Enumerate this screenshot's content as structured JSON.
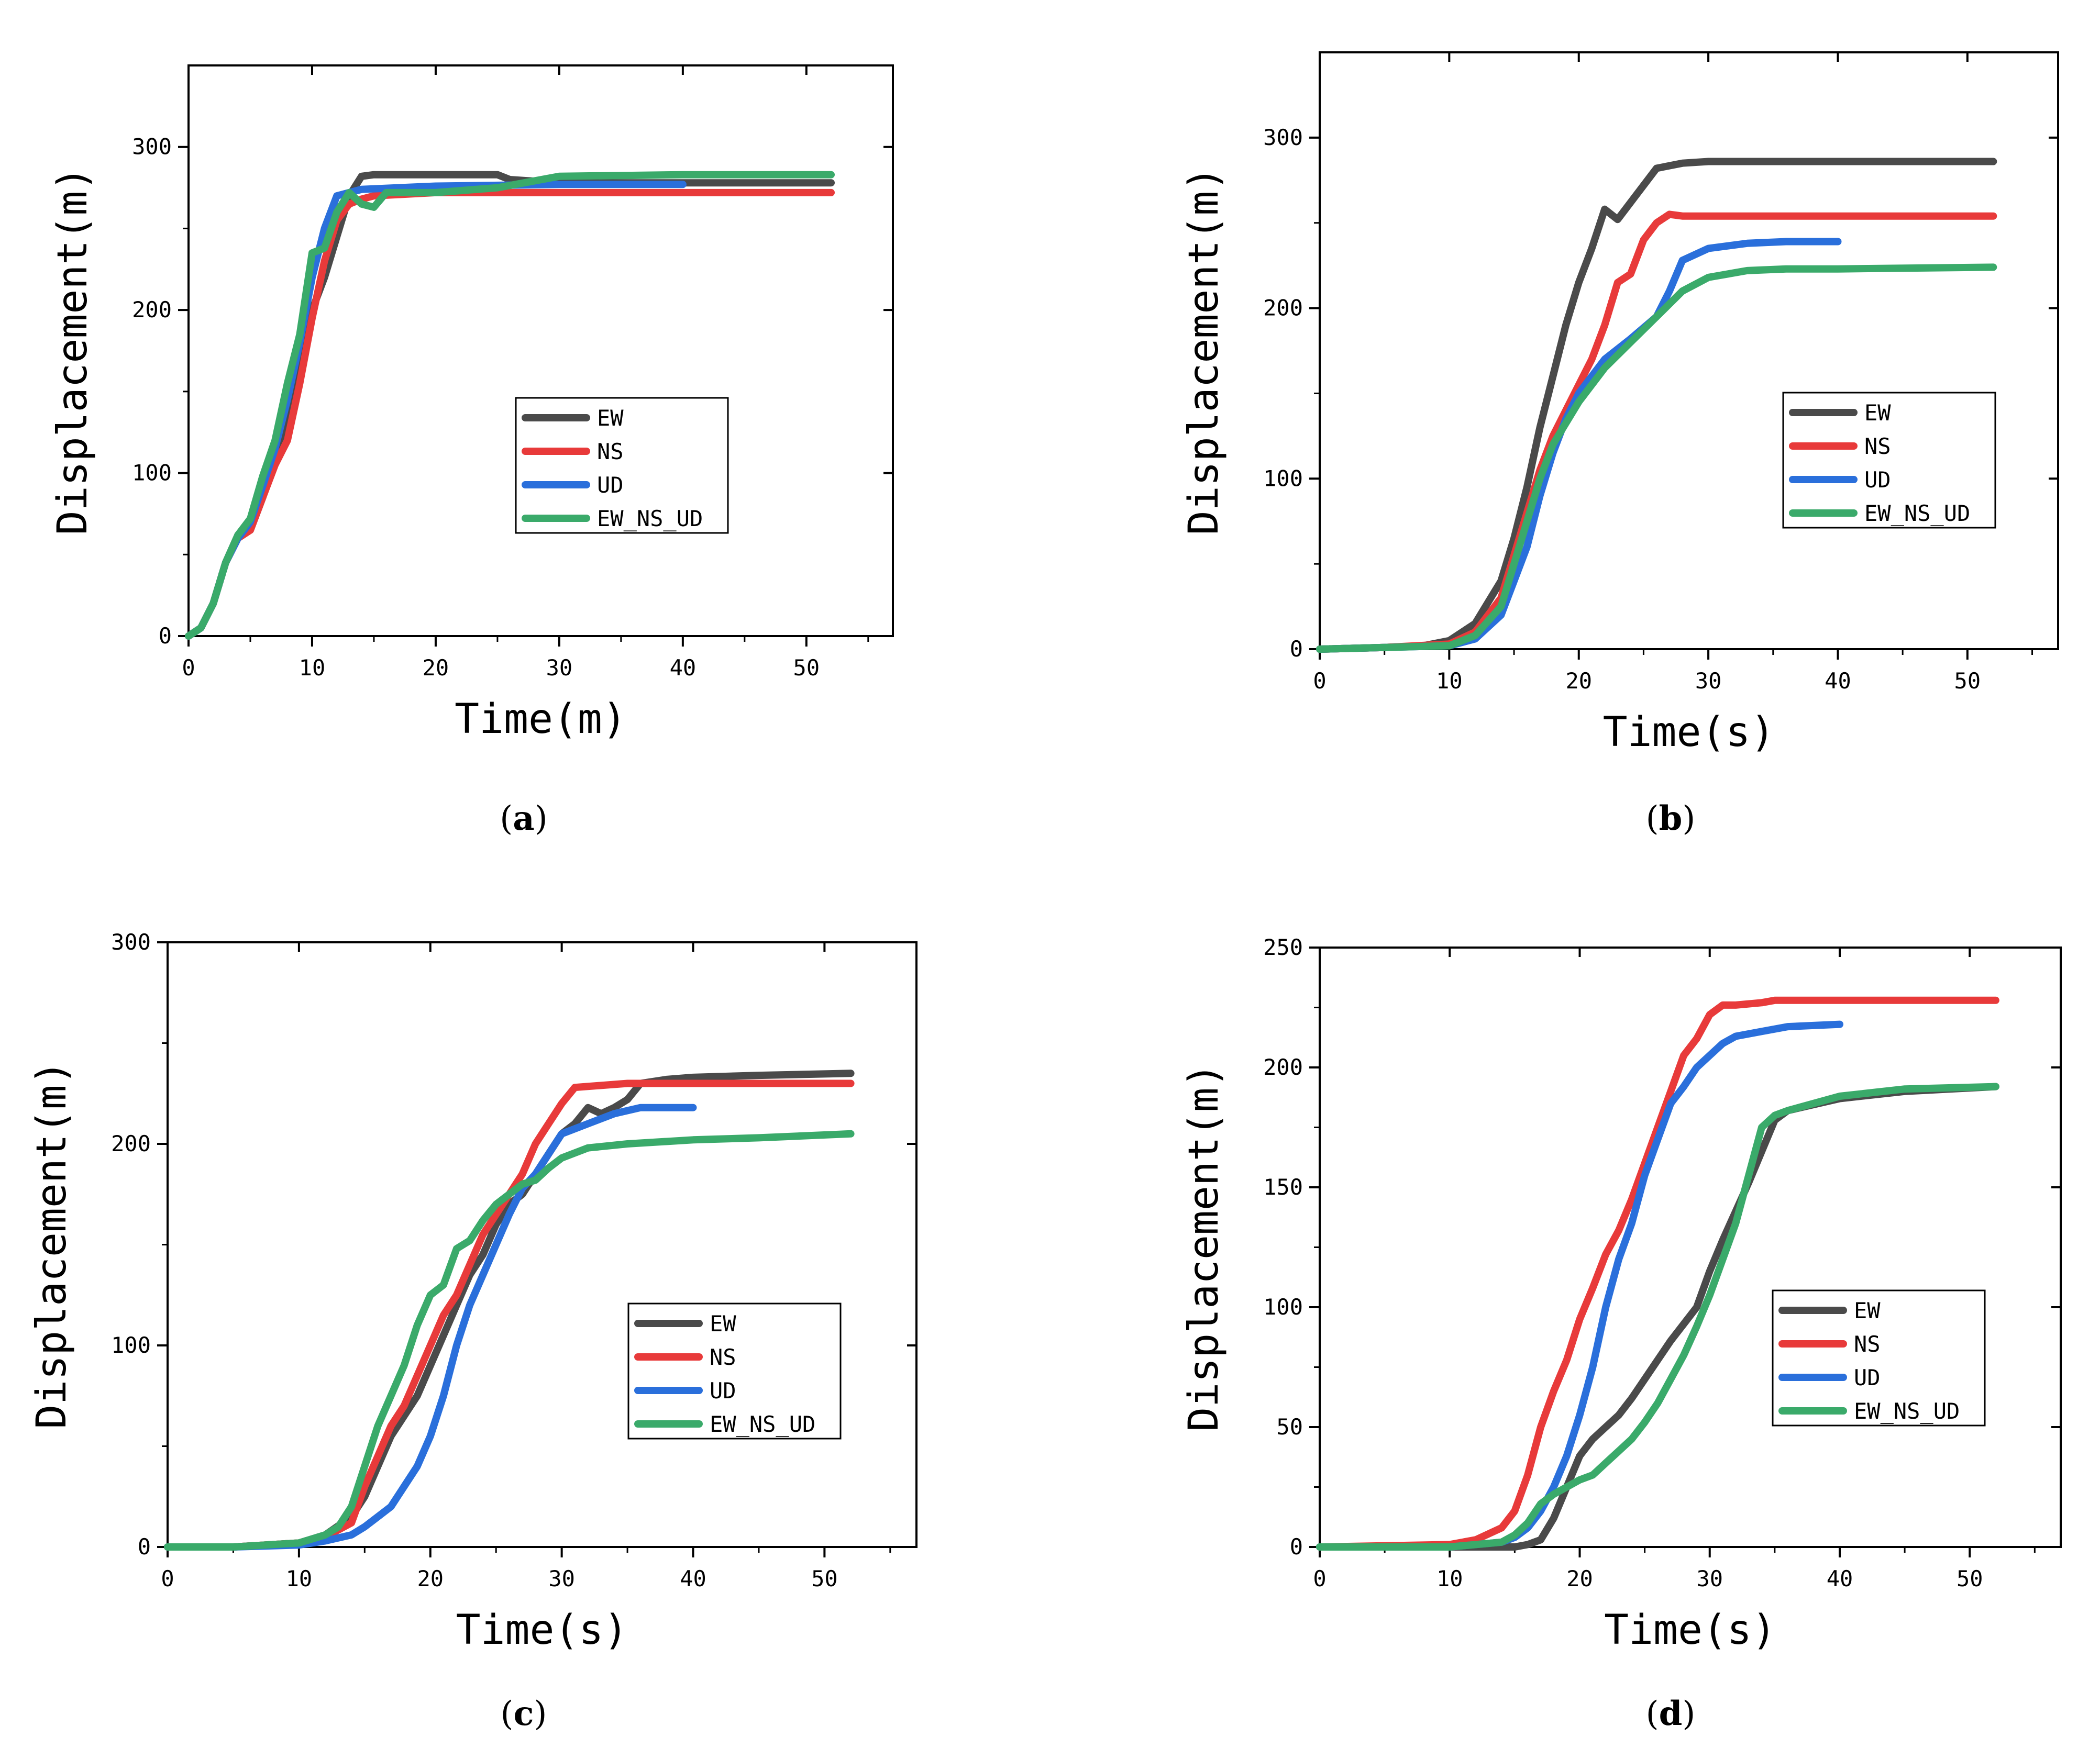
{
  "colors": {
    "EW": "#4a4a4a",
    "NS": "#e83a3a",
    "UD": "#2a6fdb",
    "EW_NS_UD": "#3aaa6a"
  },
  "chart_data": [
    {
      "type": "line",
      "panel_label": "a",
      "xlabel": "Time(m)",
      "ylabel": "Displacement(m)",
      "xlim": [
        0,
        57
      ],
      "ylim": [
        0,
        350
      ],
      "xticks": [
        0,
        10,
        20,
        30,
        40,
        50
      ],
      "yticks": [
        0,
        100,
        200,
        300
      ],
      "legend_position": "center-right",
      "series": [
        {
          "name": "EW",
          "color": "#4a4a4a",
          "x": [
            0,
            1,
            2,
            3,
            4,
            5,
            6,
            7,
            8,
            9,
            10,
            11,
            12,
            13,
            14,
            15,
            20,
            25,
            26,
            30,
            52
          ],
          "y": [
            0,
            5,
            20,
            45,
            62,
            65,
            85,
            110,
            130,
            170,
            200,
            220,
            245,
            270,
            282,
            283,
            283,
            283,
            280,
            278,
            278
          ]
        },
        {
          "name": "NS",
          "color": "#e83a3a",
          "x": [
            0,
            1,
            2,
            3,
            4,
            5,
            6,
            7,
            8,
            9,
            10,
            11,
            12,
            13,
            14,
            15,
            20,
            30,
            52
          ],
          "y": [
            0,
            5,
            20,
            45,
            60,
            65,
            85,
            105,
            120,
            155,
            195,
            230,
            255,
            265,
            268,
            270,
            272,
            272,
            272
          ]
        },
        {
          "name": "UD",
          "color": "#2a6fdb",
          "x": [
            0,
            1,
            2,
            3,
            4,
            5,
            6,
            7,
            8,
            9,
            10,
            11,
            12,
            13,
            14,
            20,
            30,
            40
          ],
          "y": [
            0,
            5,
            20,
            45,
            60,
            70,
            92,
            115,
            145,
            180,
            220,
            250,
            270,
            272,
            274,
            276,
            277,
            277
          ]
        },
        {
          "name": "EW_NS_UD",
          "color": "#3aaa6a",
          "x": [
            0,
            1,
            2,
            3,
            4,
            5,
            6,
            7,
            8,
            9,
            10,
            11,
            12,
            13,
            14,
            15,
            16,
            20,
            25,
            30,
            40,
            45,
            52
          ],
          "y": [
            0,
            5,
            20,
            45,
            62,
            72,
            98,
            120,
            155,
            185,
            235,
            238,
            260,
            272,
            265,
            263,
            272,
            272,
            275,
            282,
            283,
            283,
            283
          ]
        }
      ]
    },
    {
      "type": "line",
      "panel_label": "b",
      "xlabel": "Time(s)",
      "ylabel": "Displacement(m)",
      "xlim": [
        0,
        57
      ],
      "ylim": [
        0,
        350
      ],
      "xticks": [
        0,
        10,
        20,
        30,
        40,
        50
      ],
      "yticks": [
        0,
        100,
        200,
        300
      ],
      "legend_position": "center-right",
      "series": [
        {
          "name": "EW",
          "color": "#4a4a4a",
          "x": [
            0,
            5,
            8,
            10,
            12,
            14,
            15,
            16,
            17,
            18,
            19,
            20,
            21,
            22,
            23,
            24,
            25,
            26,
            28,
            30,
            52
          ],
          "y": [
            0,
            1,
            2,
            5,
            15,
            40,
            65,
            95,
            130,
            160,
            190,
            215,
            235,
            258,
            252,
            262,
            272,
            282,
            285,
            286,
            286
          ]
        },
        {
          "name": "NS",
          "color": "#e83a3a",
          "x": [
            0,
            5,
            10,
            12,
            14,
            15,
            16,
            17,
            18,
            19,
            20,
            21,
            22,
            23,
            24,
            25,
            26,
            27,
            28,
            30,
            52
          ],
          "y": [
            0,
            1,
            3,
            10,
            30,
            55,
            80,
            105,
            125,
            140,
            155,
            170,
            190,
            215,
            220,
            240,
            250,
            255,
            254,
            254,
            254
          ]
        },
        {
          "name": "UD",
          "color": "#2a6fdb",
          "x": [
            0,
            5,
            10,
            12,
            14,
            15,
            16,
            17,
            18,
            19,
            20,
            22,
            24,
            26,
            27,
            28,
            30,
            33,
            36,
            40
          ],
          "y": [
            0,
            1,
            2,
            6,
            20,
            40,
            60,
            90,
            115,
            135,
            150,
            170,
            182,
            195,
            210,
            228,
            235,
            238,
            239,
            239
          ]
        },
        {
          "name": "EW_NS_UD",
          "color": "#3aaa6a",
          "x": [
            0,
            5,
            10,
            12,
            14,
            15,
            16,
            17,
            18,
            20,
            22,
            24,
            26,
            28,
            30,
            33,
            36,
            40,
            52
          ],
          "y": [
            0,
            1,
            2,
            8,
            25,
            50,
            75,
            100,
            120,
            145,
            165,
            180,
            195,
            210,
            218,
            222,
            223,
            223,
            224
          ]
        }
      ]
    },
    {
      "type": "line",
      "panel_label": "c",
      "xlabel": "Time(s)",
      "ylabel": "Displacement(m)",
      "xlim": [
        0,
        57
      ],
      "ylim": [
        0,
        300
      ],
      "xticks": [
        0,
        10,
        20,
        30,
        40,
        50
      ],
      "yticks": [
        0,
        100,
        200,
        300
      ],
      "legend_position": "center-right",
      "series": [
        {
          "name": "EW",
          "color": "#4a4a4a",
          "x": [
            0,
            5,
            10,
            12,
            14,
            15,
            16,
            17,
            18,
            19,
            20,
            21,
            22,
            23,
            24,
            25,
            26,
            27,
            28,
            29,
            30,
            31,
            32,
            33,
            34,
            35,
            36,
            38,
            40,
            45,
            52
          ],
          "y": [
            0,
            0,
            2,
            6,
            15,
            25,
            40,
            55,
            65,
            75,
            90,
            105,
            120,
            135,
            145,
            160,
            170,
            175,
            185,
            195,
            205,
            210,
            218,
            215,
            218,
            222,
            230,
            232,
            233,
            234,
            235
          ]
        },
        {
          "name": "NS",
          "color": "#e83a3a",
          "x": [
            0,
            5,
            10,
            12,
            14,
            15,
            16,
            17,
            18,
            19,
            20,
            21,
            22,
            23,
            24,
            25,
            26,
            27,
            28,
            29,
            30,
            31,
            35,
            52
          ],
          "y": [
            0,
            0,
            2,
            5,
            12,
            30,
            45,
            60,
            70,
            85,
            100,
            115,
            125,
            140,
            155,
            165,
            175,
            185,
            200,
            210,
            220,
            228,
            230,
            230
          ]
        },
        {
          "name": "UD",
          "color": "#2a6fdb",
          "x": [
            0,
            5,
            10,
            12,
            14,
            15,
            16,
            17,
            18,
            19,
            20,
            21,
            22,
            23,
            24,
            25,
            26,
            27,
            28,
            29,
            30,
            32,
            34,
            36,
            40
          ],
          "y": [
            0,
            0,
            1,
            3,
            6,
            10,
            15,
            20,
            30,
            40,
            55,
            75,
            100,
            120,
            135,
            150,
            165,
            178,
            185,
            195,
            205,
            210,
            215,
            218,
            218
          ]
        },
        {
          "name": "EW_NS_UD",
          "color": "#3aaa6a",
          "x": [
            0,
            5,
            10,
            12,
            13,
            14,
            15,
            16,
            17,
            18,
            19,
            20,
            21,
            22,
            23,
            24,
            25,
            26,
            27,
            28,
            29,
            30,
            32,
            35,
            40,
            45,
            52
          ],
          "y": [
            0,
            0,
            2,
            6,
            10,
            20,
            40,
            60,
            75,
            90,
            110,
            125,
            130,
            148,
            152,
            162,
            170,
            175,
            180,
            182,
            188,
            193,
            198,
            200,
            202,
            203,
            205
          ]
        }
      ]
    },
    {
      "type": "line",
      "panel_label": "d",
      "xlabel": "Time(s)",
      "ylabel": "Displacement(m)",
      "xlim": [
        0,
        57
      ],
      "ylim": [
        0,
        250
      ],
      "xticks": [
        0,
        10,
        20,
        30,
        40,
        50
      ],
      "yticks": [
        0,
        50,
        100,
        150,
        200,
        250
      ],
      "legend_position": "center-right",
      "series": [
        {
          "name": "EW",
          "color": "#4a4a4a",
          "x": [
            0,
            10,
            15,
            16,
            17,
            18,
            19,
            20,
            21,
            22,
            23,
            24,
            25,
            26,
            27,
            28,
            29,
            30,
            31,
            32,
            33,
            34,
            35,
            36,
            40,
            45,
            52
          ],
          "y": [
            0,
            0,
            0,
            1,
            3,
            12,
            25,
            38,
            45,
            50,
            55,
            62,
            70,
            78,
            86,
            93,
            100,
            115,
            128,
            140,
            152,
            165,
            178,
            182,
            187,
            190,
            192
          ]
        },
        {
          "name": "NS",
          "color": "#e83a3a",
          "x": [
            0,
            10,
            12,
            14,
            15,
            16,
            17,
            18,
            19,
            20,
            21,
            22,
            23,
            24,
            25,
            26,
            27,
            28,
            29,
            30,
            31,
            32,
            34,
            35,
            40,
            52
          ],
          "y": [
            0,
            1,
            3,
            8,
            15,
            30,
            50,
            65,
            78,
            95,
            108,
            122,
            132,
            145,
            160,
            175,
            190,
            205,
            212,
            222,
            226,
            226,
            227,
            228,
            228,
            228
          ]
        },
        {
          "name": "UD",
          "color": "#2a6fdb",
          "x": [
            0,
            10,
            14,
            15,
            16,
            17,
            18,
            19,
            20,
            21,
            22,
            23,
            24,
            25,
            26,
            27,
            28,
            29,
            30,
            31,
            32,
            33,
            34,
            36,
            40
          ],
          "y": [
            0,
            0,
            2,
            4,
            8,
            15,
            25,
            38,
            55,
            75,
            100,
            120,
            135,
            155,
            170,
            185,
            192,
            200,
            205,
            210,
            213,
            214,
            215,
            217,
            218
          ]
        },
        {
          "name": "EW_NS_UD",
          "color": "#3aaa6a",
          "x": [
            0,
            10,
            14,
            15,
            16,
            17,
            18,
            19,
            20,
            21,
            22,
            23,
            24,
            25,
            26,
            27,
            28,
            29,
            30,
            31,
            32,
            33,
            34,
            35,
            36,
            40,
            45,
            52
          ],
          "y": [
            0,
            0,
            2,
            5,
            10,
            18,
            22,
            25,
            28,
            30,
            35,
            40,
            45,
            52,
            60,
            70,
            80,
            92,
            105,
            120,
            135,
            155,
            175,
            180,
            182,
            188,
            191,
            192
          ]
        }
      ]
    }
  ]
}
